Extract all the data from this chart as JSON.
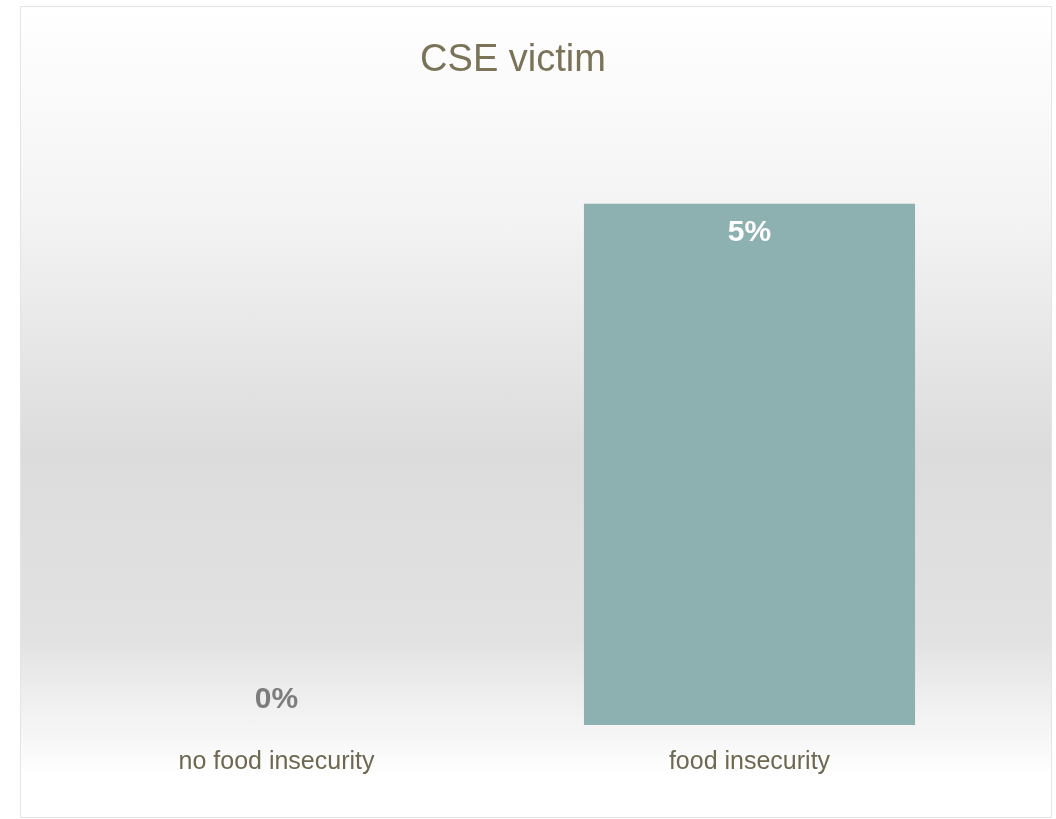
{
  "chart_data": {
    "type": "bar",
    "title": "CSE victim",
    "categories": [
      "no food insecurity",
      "food insecurity"
    ],
    "values": [
      0,
      5
    ],
    "value_labels": [
      "0%",
      "5%"
    ],
    "color": "#8db1b0",
    "grid": false,
    "legend": false
  }
}
